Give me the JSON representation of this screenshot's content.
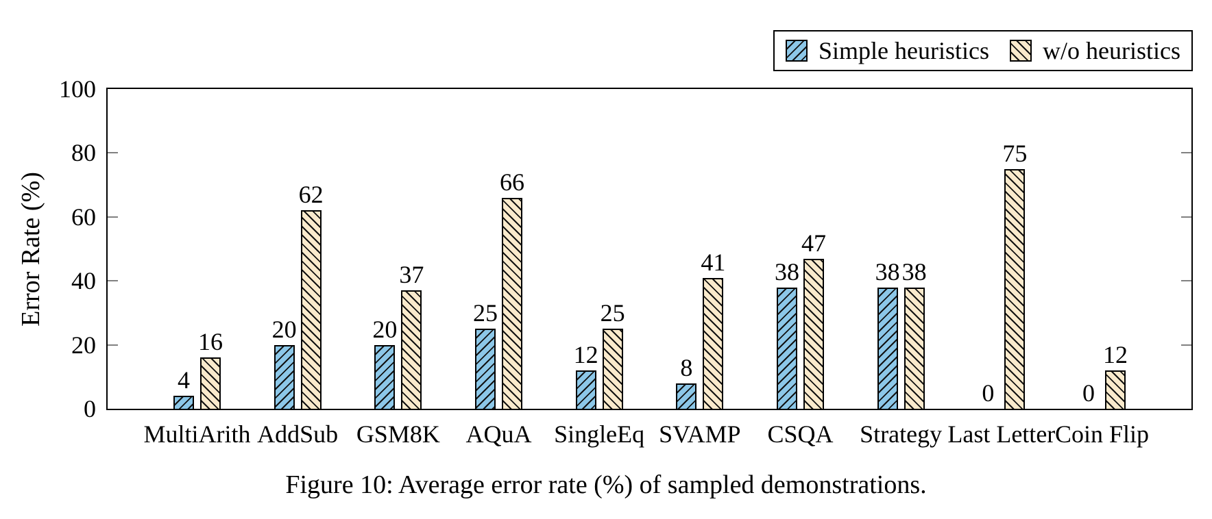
{
  "chart_data": {
    "type": "bar",
    "title": "",
    "categories": [
      "MultiArith",
      "AddSub",
      "GSM8K",
      "AQuA",
      "SingleEq",
      "SVAMP",
      "CSQA",
      "Strategy",
      "Last Letter",
      "Coin Flip"
    ],
    "series": [
      {
        "name": "Simple heuristics",
        "color": "#8CC7E8",
        "hatch": "/",
        "values": [
          4,
          20,
          20,
          25,
          12,
          8,
          38,
          38,
          0,
          0
        ]
      },
      {
        "name": "w/o heuristics",
        "color": "#FAEACC",
        "hatch": "\\",
        "values": [
          16,
          62,
          37,
          66,
          25,
          41,
          47,
          38,
          75,
          12
        ]
      }
    ],
    "xlabel": "",
    "ylabel": "Error Rate (%)",
    "ylim": [
      0,
      100
    ],
    "yticks": [
      0,
      20,
      40,
      60,
      80,
      100
    ],
    "value_labels": true,
    "grid": false,
    "legend_position": "top-right",
    "bar_edge_color": "#000000",
    "tick_color": "#808080"
  },
  "caption": "Figure 10: Average error rate (%) of sampled demonstrations."
}
